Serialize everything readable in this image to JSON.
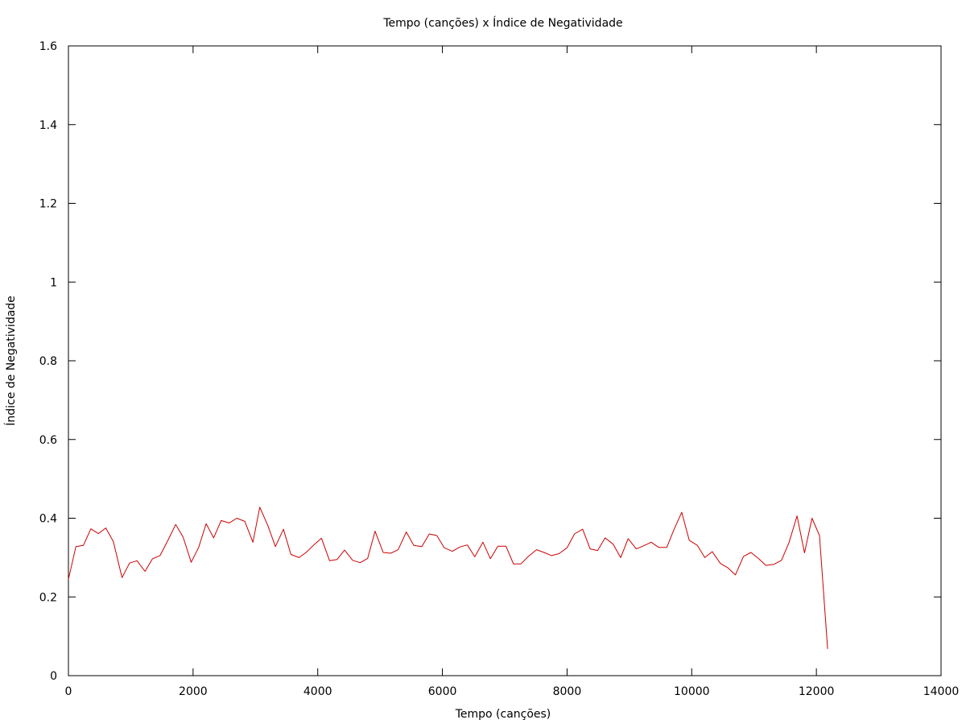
{
  "chart_data": {
    "type": "line",
    "title": "Tempo (canções) x Índice de Negatividade",
    "xlabel": "Tempo (canções)",
    "ylabel": "Índice de Negatividade",
    "xlim": [
      0,
      14000
    ],
    "ylim": [
      0,
      1.6
    ],
    "x_ticks": [
      0,
      2000,
      4000,
      6000,
      8000,
      10000,
      12000,
      14000
    ],
    "y_ticks": [
      0,
      0.2,
      0.4,
      0.6,
      0.8,
      1,
      1.2,
      1.4,
      1.6
    ],
    "x_tick_labels": [
      "0",
      "2000",
      "4000",
      "6000",
      "8000",
      "10000",
      "12000",
      "14000"
    ],
    "y_tick_labels": [
      "0",
      "0.2",
      "0.4",
      "0.6",
      "0.8",
      "1",
      "1.2",
      "1.4",
      "1.6"
    ],
    "grid": false,
    "legend": "none",
    "series": [
      {
        "color": "#cc0000",
        "points": [
          [
            0,
            0.245
          ],
          [
            120,
            0.328
          ],
          [
            240,
            0.331
          ],
          [
            360,
            0.373
          ],
          [
            480,
            0.361
          ],
          [
            600,
            0.375
          ],
          [
            720,
            0.341
          ],
          [
            860,
            0.249
          ],
          [
            980,
            0.286
          ],
          [
            1100,
            0.292
          ],
          [
            1230,
            0.265
          ],
          [
            1350,
            0.297
          ],
          [
            1470,
            0.305
          ],
          [
            1600,
            0.345
          ],
          [
            1720,
            0.384
          ],
          [
            1840,
            0.352
          ],
          [
            1970,
            0.288
          ],
          [
            2090,
            0.326
          ],
          [
            2210,
            0.386
          ],
          [
            2330,
            0.35
          ],
          [
            2450,
            0.394
          ],
          [
            2580,
            0.388
          ],
          [
            2700,
            0.4
          ],
          [
            2830,
            0.392
          ],
          [
            2960,
            0.339
          ],
          [
            3070,
            0.428
          ],
          [
            3200,
            0.381
          ],
          [
            3320,
            0.328
          ],
          [
            3450,
            0.372
          ],
          [
            3570,
            0.308
          ],
          [
            3700,
            0.3
          ],
          [
            3820,
            0.314
          ],
          [
            3950,
            0.334
          ],
          [
            4060,
            0.349
          ],
          [
            4190,
            0.292
          ],
          [
            4310,
            0.295
          ],
          [
            4430,
            0.319
          ],
          [
            4560,
            0.293
          ],
          [
            4680,
            0.287
          ],
          [
            4800,
            0.298
          ],
          [
            4920,
            0.367
          ],
          [
            5050,
            0.313
          ],
          [
            5170,
            0.311
          ],
          [
            5290,
            0.32
          ],
          [
            5420,
            0.365
          ],
          [
            5540,
            0.331
          ],
          [
            5670,
            0.328
          ],
          [
            5790,
            0.36
          ],
          [
            5910,
            0.356
          ],
          [
            6030,
            0.325
          ],
          [
            6160,
            0.316
          ],
          [
            6280,
            0.327
          ],
          [
            6400,
            0.332
          ],
          [
            6520,
            0.302
          ],
          [
            6650,
            0.339
          ],
          [
            6770,
            0.297
          ],
          [
            6890,
            0.329
          ],
          [
            7020,
            0.329
          ],
          [
            7140,
            0.284
          ],
          [
            7260,
            0.284
          ],
          [
            7380,
            0.303
          ],
          [
            7510,
            0.32
          ],
          [
            7630,
            0.313
          ],
          [
            7750,
            0.305
          ],
          [
            7870,
            0.31
          ],
          [
            8000,
            0.325
          ],
          [
            8120,
            0.36
          ],
          [
            8250,
            0.372
          ],
          [
            8370,
            0.322
          ],
          [
            8490,
            0.318
          ],
          [
            8610,
            0.35
          ],
          [
            8740,
            0.334
          ],
          [
            8860,
            0.3
          ],
          [
            8980,
            0.348
          ],
          [
            9110,
            0.322
          ],
          [
            9230,
            0.33
          ],
          [
            9350,
            0.339
          ],
          [
            9470,
            0.326
          ],
          [
            9600,
            0.326
          ],
          [
            9720,
            0.373
          ],
          [
            9840,
            0.415
          ],
          [
            9960,
            0.344
          ],
          [
            10090,
            0.331
          ],
          [
            10210,
            0.3
          ],
          [
            10330,
            0.315
          ],
          [
            10460,
            0.285
          ],
          [
            10580,
            0.274
          ],
          [
            10700,
            0.256
          ],
          [
            10830,
            0.303
          ],
          [
            10950,
            0.313
          ],
          [
            11070,
            0.298
          ],
          [
            11190,
            0.28
          ],
          [
            11320,
            0.283
          ],
          [
            11440,
            0.293
          ],
          [
            11560,
            0.338
          ],
          [
            11690,
            0.406
          ],
          [
            11810,
            0.312
          ],
          [
            11930,
            0.4
          ],
          [
            12050,
            0.356
          ],
          [
            12180,
            0.068
          ]
        ]
      }
    ]
  }
}
